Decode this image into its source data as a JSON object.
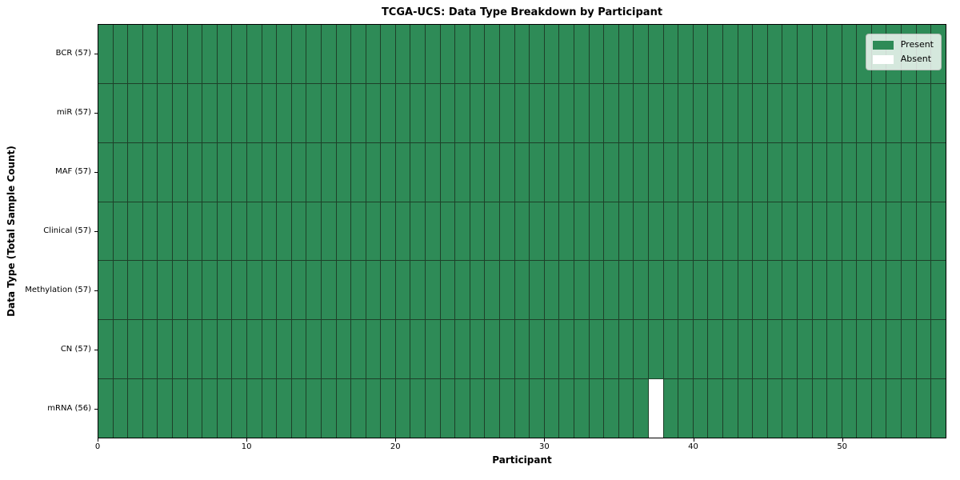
{
  "chart_data": {
    "type": "heatmap",
    "title": "TCGA-UCS: Data Type Breakdown by Participant",
    "xlabel": "Participant",
    "ylabel": "Data Type (Total Sample Count)",
    "n_participants": 57,
    "x_range": [
      0,
      57
    ],
    "x_ticks": [
      0,
      10,
      20,
      30,
      40,
      50
    ],
    "grid": true,
    "rows": [
      {
        "key": "bcr",
        "label": "BCR (57)",
        "data_type": "BCR",
        "present_count": 57,
        "absent_participants": []
      },
      {
        "key": "mir",
        "label": "miR (57)",
        "data_type": "miR",
        "present_count": 57,
        "absent_participants": []
      },
      {
        "key": "maf",
        "label": "MAF (57)",
        "data_type": "MAF",
        "present_count": 57,
        "absent_participants": []
      },
      {
        "key": "clinical",
        "label": "Clinical (57)",
        "data_type": "Clinical",
        "present_count": 57,
        "absent_participants": []
      },
      {
        "key": "methylation",
        "label": "Methylation (57)",
        "data_type": "Methylation",
        "present_count": 57,
        "absent_participants": []
      },
      {
        "key": "cn",
        "label": "CN (57)",
        "data_type": "CN",
        "present_count": 57,
        "absent_participants": []
      },
      {
        "key": "mrna",
        "label": "mRNA (56)",
        "data_type": "mRNA",
        "present_count": 56,
        "absent_participants": [
          37
        ]
      }
    ],
    "legend": {
      "position": "upper right",
      "items": [
        {
          "key": "present",
          "label": "Present",
          "color": "#2e8b57"
        },
        {
          "key": "absent",
          "label": "Absent",
          "color": "#ffffff"
        }
      ]
    },
    "colors": {
      "present": "#2e8b57",
      "absent": "#ffffff",
      "grid_line": "#1d4029",
      "spine": "#000000",
      "background": "#ffffff"
    }
  }
}
